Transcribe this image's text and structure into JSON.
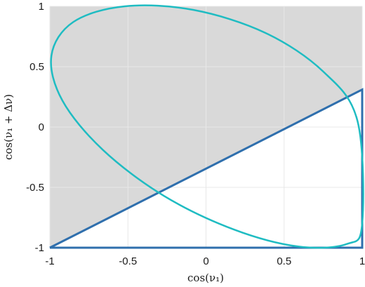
{
  "chart_data": {
    "type": "line",
    "xlabel": "cos(ν₁)",
    "ylabel": "cos(ν₁ + Δν)",
    "xlim": [
      -1,
      1
    ],
    "ylim": [
      -1,
      1
    ],
    "x_ticks": [
      "-1",
      "-0.5",
      "0",
      "0.5",
      "1"
    ],
    "y_ticks": [
      "1",
      "0.5",
      "0",
      "-0.5",
      "-1"
    ],
    "x_tick_values": [
      -1,
      -0.5,
      0,
      0.5,
      1
    ],
    "y_tick_values": [
      1,
      0.5,
      0,
      -0.5,
      -1
    ],
    "grid": true,
    "shaded_region": {
      "color": "#d9d9d9",
      "polygon": [
        [
          -1,
          -1
        ],
        [
          -1,
          1
        ],
        [
          1,
          1
        ],
        [
          1,
          0.31
        ]
      ]
    },
    "series": [
      {
        "kind": "triangle",
        "color": "#2f6fad",
        "points": [
          [
            -1,
            -1
          ],
          [
            1,
            0.31
          ],
          [
            1,
            -1
          ],
          [
            -1,
            -1
          ]
        ]
      },
      {
        "kind": "ellipse",
        "color": "#1fbcc2",
        "x": [
          1.0,
          0.9,
          0.59,
          0.18,
          -0.27,
          -0.66,
          -0.92,
          -0.99,
          -0.85,
          -0.52,
          -0.08,
          0.38,
          0.75,
          0.97,
          1.0
        ],
        "y": [
          -0.8,
          -0.97,
          -0.99,
          -0.85,
          -0.57,
          -0.19,
          0.22,
          0.59,
          0.87,
          1.0,
          0.97,
          0.78,
          0.46,
          0.05,
          -0.8
        ]
      }
    ]
  }
}
